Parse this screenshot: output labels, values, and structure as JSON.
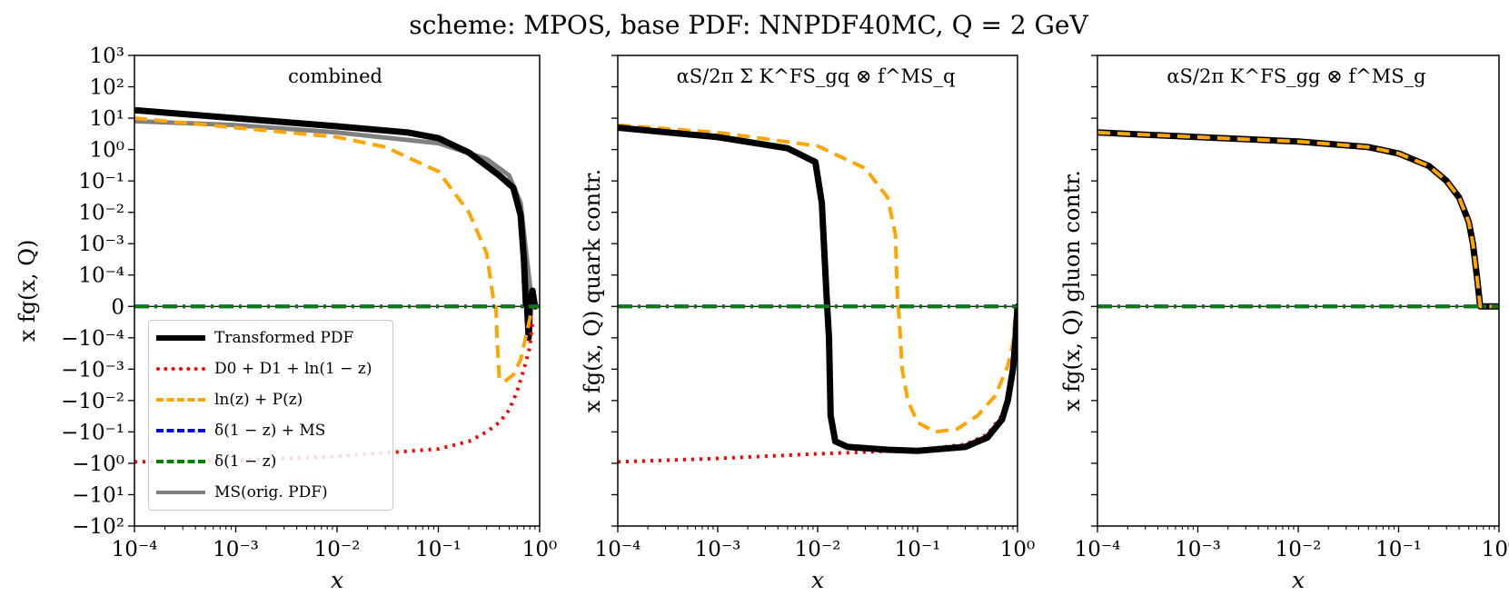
{
  "chart_data": {
    "type": "line",
    "title": "scheme: MPOS, base PDF: NNPDF40MC, Q = 2 GeV",
    "xlabel": "x",
    "x_scale": "log",
    "y_scale": "symlog",
    "xlim": [
      0.0001,
      1.0
    ],
    "ylim": [
      -100,
      1000
    ],
    "x_ticks": [
      "10^-4",
      "10^-3",
      "10^-2",
      "10^-1",
      "10^0"
    ],
    "y_ticks": [
      "10^3",
      "10^2",
      "10^1",
      "10^0",
      "10^-1",
      "10^-2",
      "10^-3",
      "10^-4",
      "0",
      "-10^-4",
      "-10^-3",
      "-10^-2",
      "-10^-1",
      "-10^0",
      "-10^1",
      "-10^2"
    ],
    "legend": {
      "placement": "lower-left",
      "entries": [
        {
          "label": "Transformed PDF",
          "color": "#000000",
          "style": "solid-thick"
        },
        {
          "label": "D0 + D1 + ln(1 − z)",
          "color": "#ff0000",
          "style": "dotted"
        },
        {
          "label": "ln(z) + P(z)",
          "color": "#ffa500",
          "style": "dashed"
        },
        {
          "label": "δ(1 − z) + MS",
          "color": "#0000ff",
          "style": "dashdot"
        },
        {
          "label": "δ(1 − z)",
          "color": "#008000",
          "style": "dashdot"
        },
        {
          "label": "MS(orig. PDF)",
          "color": "#808080",
          "style": "solid"
        }
      ]
    },
    "panels": [
      {
        "annotation": "combined",
        "ylabel": "x fg(x, Q)",
        "series": [
          {
            "name": "MS(orig. PDF)",
            "color": "#808080",
            "x": [
              0.0001,
              0.001,
              0.01,
              0.1,
              0.3,
              0.5,
              0.65,
              0.75,
              0.85
            ],
            "y": [
              8,
              6,
              3.5,
              1.6,
              0.5,
              0.15,
              0.02,
              0.0003,
              0
            ]
          },
          {
            "name": "Transformed PDF",
            "color": "#000000",
            "x": [
              0.0001,
              0.001,
              0.01,
              0.05,
              0.1,
              0.2,
              0.4,
              0.55,
              0.65,
              0.7,
              0.73,
              0.75,
              0.78,
              0.8,
              0.85,
              0.9
            ],
            "y": [
              18,
              10,
              5.5,
              3.5,
              2.3,
              0.8,
              0.15,
              0.06,
              0.008,
              0.0003,
              1e-05,
              0,
              -0.0001,
              0,
              5e-05,
              0
            ]
          },
          {
            "name": "ln(z) + P(z)",
            "color": "#ffa500",
            "x": [
              0.0001,
              0.001,
              0.01,
              0.03,
              0.1,
              0.2,
              0.3,
              0.35,
              0.37,
              0.38,
              0.4,
              0.45,
              0.55,
              0.65,
              0.75,
              0.85
            ],
            "y": [
              10,
              5,
              2.5,
              1.2,
              0.2,
              0.01,
              0.0005,
              2e-05,
              0,
              -0.0001,
              -0.002,
              -0.0025,
              -0.0015,
              -0.0005,
              -8e-05,
              0
            ]
          },
          {
            "name": "D0 + D1 + ln(1 − z)",
            "color": "#ff0000",
            "x": [
              0.0001,
              0.001,
              0.01,
              0.1,
              0.2,
              0.3,
              0.4,
              0.5,
              0.6,
              0.7,
              0.8,
              0.85
            ],
            "y": [
              -0.9,
              -0.8,
              -0.6,
              -0.35,
              -0.2,
              -0.1,
              -0.05,
              -0.02,
              -0.005,
              -0.001,
              -0.0002,
              -5e-05
            ]
          },
          {
            "name": "δ(1 − z) + MS",
            "color": "#0000ff",
            "x": [
              0.0001,
              1.0
            ],
            "y": [
              0,
              0
            ]
          },
          {
            "name": "δ(1 − z)",
            "color": "#008000",
            "x": [
              0.0001,
              1.0
            ],
            "y": [
              0,
              0
            ]
          }
        ]
      },
      {
        "annotation": "αS/2π Σ K^FS_gq ⊗ f^MS_q",
        "ylabel": "x fg(x, Q)  quark contr.",
        "series": [
          {
            "name": "ln(z) + P(z)",
            "color": "#ffa500",
            "x": [
              0.0001,
              0.001,
              0.01,
              0.03,
              0.05,
              0.06,
              0.063,
              0.066,
              0.07,
              0.08,
              0.1,
              0.15,
              0.25,
              0.4,
              0.6,
              0.8,
              0.9,
              0.95,
              1.0
            ],
            "y": [
              6,
              3.5,
              1.3,
              0.25,
              0.03,
              0.002,
              3e-05,
              -5e-05,
              -0.001,
              -0.01,
              -0.05,
              -0.1,
              -0.08,
              -0.03,
              -0.007,
              -0.0008,
              -0.00015,
              -3e-05,
              0
            ]
          },
          {
            "name": "D0 + D1 + ln(1 − z)",
            "color": "#ff0000",
            "x": [
              0.0001,
              0.001,
              0.01,
              0.1,
              0.3,
              0.5,
              0.7,
              0.8,
              0.9,
              0.95,
              1.0
            ],
            "y": [
              -0.9,
              -0.7,
              -0.5,
              -0.38,
              -0.25,
              -0.12,
              -0.03,
              -0.008,
              -0.0008,
              -0.0001,
              0
            ]
          },
          {
            "name": "Transformed PDF",
            "color": "#000000",
            "x": [
              0.0001,
              0.001,
              0.005,
              0.0095,
              0.011,
              0.0123,
              0.013,
              0.0135,
              0.015,
              0.02,
              0.05,
              0.1,
              0.3,
              0.5,
              0.7,
              0.8,
              0.9,
              0.95,
              1.0
            ],
            "y": [
              5,
              2.5,
              1.1,
              0.4,
              0.02,
              3e-05,
              -0.0001,
              -0.03,
              -0.2,
              -0.3,
              -0.37,
              -0.4,
              -0.3,
              -0.15,
              -0.04,
              -0.01,
              -0.001,
              -0.00015,
              0
            ]
          },
          {
            "name": "δ(1 − z) + MS",
            "color": "#0000ff",
            "x": [
              0.0001,
              1.0
            ],
            "y": [
              0,
              0
            ]
          },
          {
            "name": "δ(1 − z)",
            "color": "#008000",
            "x": [
              0.0001,
              1.0
            ],
            "y": [
              0,
              0
            ]
          }
        ]
      },
      {
        "annotation": "αS/2π K^FS_gg ⊗ f^MS_g",
        "ylabel": "x fg(x, Q)  gluon contr.",
        "series": [
          {
            "name": "Transformed PDF",
            "color": "#000000",
            "x": [
              0.0001,
              0.001,
              0.01,
              0.05,
              0.1,
              0.2,
              0.3,
              0.4,
              0.5,
              0.55,
              0.6,
              0.65,
              0.7,
              0.8,
              1.0
            ],
            "y": [
              3.5,
              2.5,
              1.8,
              1.2,
              0.75,
              0.3,
              0.1,
              0.03,
              0.005,
              0.001,
              0.0001,
              0,
              0,
              0,
              0
            ]
          },
          {
            "name": "ln(z) + P(z)",
            "color": "#ffa500",
            "x": [
              0.0001,
              0.001,
              0.01,
              0.05,
              0.1,
              0.2,
              0.3,
              0.4,
              0.5,
              0.55,
              0.6,
              0.65,
              0.7,
              0.8,
              1.0
            ],
            "y": [
              3.5,
              2.5,
              1.8,
              1.2,
              0.75,
              0.3,
              0.1,
              0.03,
              0.005,
              0.001,
              0.0001,
              0,
              0,
              0,
              0
            ]
          },
          {
            "name": "δ(1 − z) + MS",
            "color": "#0000ff",
            "x": [
              0.0001,
              1.0
            ],
            "y": [
              0,
              0
            ]
          },
          {
            "name": "δ(1 − z)",
            "color": "#008000",
            "x": [
              0.0001,
              1.0
            ],
            "y": [
              0,
              0
            ]
          }
        ]
      }
    ]
  }
}
